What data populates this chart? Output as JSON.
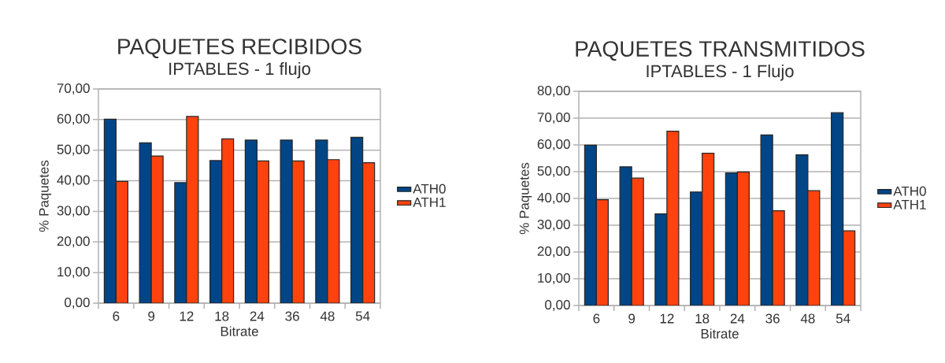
{
  "chart_data": [
    {
      "type": "bar",
      "title": "PAQUETES RECIBIDOS",
      "subtitle": "IPTABLES - 1 flujo",
      "xlabel": "Bitrate",
      "ylabel": "% Paquetes",
      "categories": [
        "6",
        "9",
        "12",
        "18",
        "24",
        "36",
        "48",
        "54"
      ],
      "series": [
        {
          "name": "ATH0",
          "color": "#004586",
          "values": [
            60.1,
            52.4,
            39.4,
            46.6,
            53.3,
            53.3,
            53.3,
            54.2
          ]
        },
        {
          "name": "ATH1",
          "color": "#ff420e",
          "values": [
            39.8,
            48.1,
            61.0,
            53.7,
            46.5,
            46.5,
            46.9,
            45.9
          ]
        }
      ],
      "ylim": [
        0,
        70
      ],
      "yticks": [
        {
          "value": 0,
          "label": "0,00"
        },
        {
          "value": 10,
          "label": "10,00"
        },
        {
          "value": 20,
          "label": "20,00"
        },
        {
          "value": 30,
          "label": "30,00"
        },
        {
          "value": 40,
          "label": "40,00"
        },
        {
          "value": 50,
          "label": "50,00"
        },
        {
          "value": 60,
          "label": "60,00"
        },
        {
          "value": 70,
          "label": "70,00"
        }
      ],
      "grid": "y",
      "legend": "right"
    },
    {
      "type": "bar",
      "title": "PAQUETES TRANSMITIDOS",
      "subtitle": "IPTABLES - 1 Flujo",
      "xlabel": "Bitrate",
      "ylabel": "% Paquetes",
      "categories": [
        "6",
        "9",
        "12",
        "18",
        "24",
        "36",
        "48",
        "54"
      ],
      "series": [
        {
          "name": "ATH0",
          "color": "#004586",
          "values": [
            59.9,
            51.8,
            34.2,
            42.4,
            49.5,
            63.7,
            56.3,
            72.0
          ]
        },
        {
          "name": "ATH1",
          "color": "#ff420e",
          "values": [
            39.5,
            47.6,
            65.1,
            56.9,
            49.9,
            35.4,
            42.9,
            27.9
          ]
        }
      ],
      "ylim": [
        0,
        80
      ],
      "yticks": [
        {
          "value": 0,
          "label": "0,00"
        },
        {
          "value": 10,
          "label": "10,00"
        },
        {
          "value": 20,
          "label": "20,00"
        },
        {
          "value": 30,
          "label": "30,00"
        },
        {
          "value": 40,
          "label": "40,00"
        },
        {
          "value": 50,
          "label": "50,00"
        },
        {
          "value": 60,
          "label": "60,00"
        },
        {
          "value": 70,
          "label": "70,00"
        },
        {
          "value": 80,
          "label": "80,00"
        }
      ],
      "grid": "y",
      "legend": "right"
    }
  ]
}
